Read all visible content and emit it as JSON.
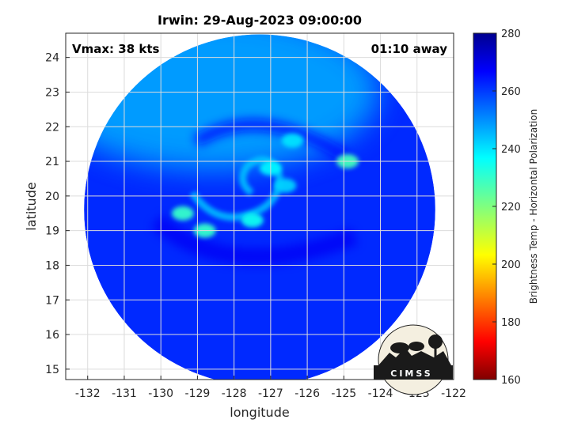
{
  "chart_data": {
    "type": "heatmap",
    "title": "Irwin: 29-Aug-2023 09:00:00",
    "xlabel": "longitude",
    "ylabel": "latitude",
    "xlim": [
      -132.6,
      -122
    ],
    "ylim": [
      14.7,
      24.7
    ],
    "xticks": [
      -132,
      -131,
      -130,
      -129,
      -128,
      -127,
      -126,
      -125,
      -124,
      -123,
      -122
    ],
    "yticks": [
      15,
      16,
      17,
      18,
      19,
      20,
      21,
      22,
      23,
      24
    ],
    "grid": true,
    "annotations": {
      "top_left": "Vmax: 38 kts",
      "top_right": "01:10 away"
    },
    "colorbar": {
      "label": "Brightness Temp - Horizontal Polarization",
      "range": [
        160,
        280
      ],
      "ticks": [
        160,
        180,
        200,
        220,
        240,
        260,
        280
      ],
      "colormap": "jet"
    },
    "storm_center": {
      "lon": -127.3,
      "lat": 20.2
    },
    "swath_center": {
      "lon": -127.3,
      "lat": 19.6
    },
    "swath_radius_deg": 5.3,
    "field": {
      "background_tb": 262,
      "north_tb": 247,
      "bright_features": [
        {
          "lon": -129.4,
          "lat": 19.5,
          "tb": 230
        },
        {
          "lon": -128.8,
          "lat": 19.0,
          "tb": 230
        },
        {
          "lon": -127.0,
          "lat": 20.8,
          "tb": 238
        },
        {
          "lon": -126.4,
          "lat": 21.6,
          "tb": 240
        },
        {
          "lon": -127.5,
          "lat": 19.3,
          "tb": 235
        },
        {
          "lon": -124.9,
          "lat": 21.0,
          "tb": 228
        },
        {
          "lon": -126.6,
          "lat": 20.3,
          "tb": 242
        }
      ]
    }
  },
  "logo": {
    "text": "CIMSS"
  }
}
